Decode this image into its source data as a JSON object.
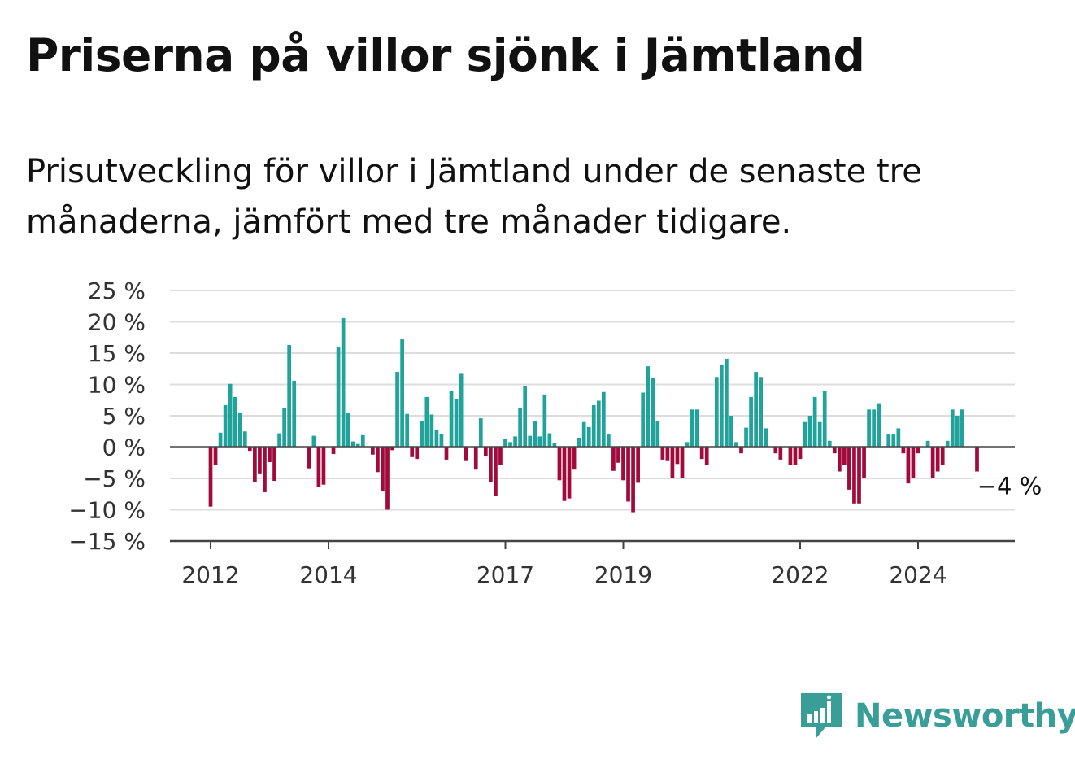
{
  "title": "Priserna på villor sjönk i Jämtland",
  "subtitle": "Prisutveckling för villor i Jämtland under de senaste tre månaderna, jämfört med tre månader tidigare.",
  "brand": {
    "name": "Newsworthy",
    "color": "#3a9e98"
  },
  "colors": {
    "positive": "#1fa39b",
    "negative": "#a10a3a",
    "grid": "#dddddd",
    "axis": "#444444"
  },
  "chart_data": {
    "type": "bar",
    "ylim": [
      -15,
      25
    ],
    "yticks": [
      25,
      20,
      15,
      10,
      5,
      0,
      -5,
      -10,
      -15
    ],
    "ytick_labels": [
      "25 %",
      "20 %",
      "15 %",
      "10 %",
      "5 %",
      "0 %",
      "−5 %",
      "−10 %",
      "−15 %"
    ],
    "x_start": "2012-01",
    "x_end": "2025-09",
    "x_tick_labels": [
      {
        "label": "2012",
        "x": "2012-01"
      },
      {
        "label": "2014",
        "x": "2014-01"
      },
      {
        "label": "2017",
        "x": "2017-01"
      },
      {
        "label": "2019",
        "x": "2019-01"
      },
      {
        "label": "2022",
        "x": "2022-01"
      },
      {
        "label": "2024",
        "x": "2024-01"
      }
    ],
    "grid": true,
    "last_value_label": "−4 %",
    "series": [
      {
        "values": [
          {
            "x": "2012-01",
            "y": -9.5
          },
          {
            "x": "2012-02",
            "y": -2.8
          },
          {
            "x": "2012-03",
            "y": 2.3
          },
          {
            "x": "2012-04",
            "y": 6.7
          },
          {
            "x": "2012-05",
            "y": 10.1
          },
          {
            "x": "2012-06",
            "y": 8.0
          },
          {
            "x": "2012-07",
            "y": 5.4
          },
          {
            "x": "2012-08",
            "y": 2.5
          },
          {
            "x": "2012-09",
            "y": -0.6
          },
          {
            "x": "2012-10",
            "y": -5.6
          },
          {
            "x": "2012-11",
            "y": -4.2
          },
          {
            "x": "2012-12",
            "y": -7.2
          },
          {
            "x": "2013-01",
            "y": -2.4
          },
          {
            "x": "2013-02",
            "y": -5.4
          },
          {
            "x": "2013-03",
            "y": 2.2
          },
          {
            "x": "2013-04",
            "y": 6.3
          },
          {
            "x": "2013-05",
            "y": 16.3
          },
          {
            "x": "2013-06",
            "y": 10.6
          },
          {
            "x": "2013-07",
            "y": 0.0
          },
          {
            "x": "2013-08",
            "y": 0.0
          },
          {
            "x": "2013-09",
            "y": -3.4
          },
          {
            "x": "2013-10",
            "y": 1.8
          },
          {
            "x": "2013-11",
            "y": -6.3
          },
          {
            "x": "2013-12",
            "y": -6.0
          },
          {
            "x": "2014-01",
            "y": 0.0
          },
          {
            "x": "2014-02",
            "y": -1.1
          },
          {
            "x": "2014-03",
            "y": 15.9
          },
          {
            "x": "2014-04",
            "y": 20.6
          },
          {
            "x": "2014-05",
            "y": 5.4
          },
          {
            "x": "2014-06",
            "y": 0.9
          },
          {
            "x": "2014-07",
            "y": 0.5
          },
          {
            "x": "2014-08",
            "y": 1.9
          },
          {
            "x": "2014-09",
            "y": 0.0
          },
          {
            "x": "2014-10",
            "y": -1.2
          },
          {
            "x": "2014-11",
            "y": -4.0
          },
          {
            "x": "2014-12",
            "y": -7.0
          },
          {
            "x": "2015-01",
            "y": -10.0
          },
          {
            "x": "2015-02",
            "y": -0.5
          },
          {
            "x": "2015-03",
            "y": 12.0
          },
          {
            "x": "2015-04",
            "y": 17.2
          },
          {
            "x": "2015-05",
            "y": 5.3
          },
          {
            "x": "2015-06",
            "y": -1.6
          },
          {
            "x": "2015-07",
            "y": -1.9
          },
          {
            "x": "2015-08",
            "y": 4.1
          },
          {
            "x": "2015-09",
            "y": 8.0
          },
          {
            "x": "2015-10",
            "y": 5.2
          },
          {
            "x": "2015-11",
            "y": 2.8
          },
          {
            "x": "2015-12",
            "y": 2.1
          },
          {
            "x": "2016-01",
            "y": -2.0
          },
          {
            "x": "2016-02",
            "y": 8.9
          },
          {
            "x": "2016-03",
            "y": 7.7
          },
          {
            "x": "2016-04",
            "y": 11.7
          },
          {
            "x": "2016-05",
            "y": -2.1
          },
          {
            "x": "2016-06",
            "y": 0.0
          },
          {
            "x": "2016-07",
            "y": -3.6
          },
          {
            "x": "2016-08",
            "y": 4.6
          },
          {
            "x": "2016-09",
            "y": -1.5
          },
          {
            "x": "2016-10",
            "y": -5.6
          },
          {
            "x": "2016-11",
            "y": -7.8
          },
          {
            "x": "2016-12",
            "y": -2.9
          },
          {
            "x": "2017-01",
            "y": 1.3
          },
          {
            "x": "2017-02",
            "y": 0.8
          },
          {
            "x": "2017-03",
            "y": 1.7
          },
          {
            "x": "2017-04",
            "y": 6.3
          },
          {
            "x": "2017-05",
            "y": 9.8
          },
          {
            "x": "2017-06",
            "y": 1.8
          },
          {
            "x": "2017-07",
            "y": 4.1
          },
          {
            "x": "2017-08",
            "y": 1.7
          },
          {
            "x": "2017-09",
            "y": 8.4
          },
          {
            "x": "2017-10",
            "y": 2.2
          },
          {
            "x": "2017-11",
            "y": 0.6
          },
          {
            "x": "2017-12",
            "y": -5.3
          },
          {
            "x": "2018-01",
            "y": -8.6
          },
          {
            "x": "2018-02",
            "y": -8.2
          },
          {
            "x": "2018-03",
            "y": -3.6
          },
          {
            "x": "2018-04",
            "y": 1.5
          },
          {
            "x": "2018-05",
            "y": 4.0
          },
          {
            "x": "2018-06",
            "y": 3.2
          },
          {
            "x": "2018-07",
            "y": 6.7
          },
          {
            "x": "2018-08",
            "y": 7.4
          },
          {
            "x": "2018-09",
            "y": 8.8
          },
          {
            "x": "2018-10",
            "y": 2.0
          },
          {
            "x": "2018-11",
            "y": -3.8
          },
          {
            "x": "2018-12",
            "y": -2.5
          },
          {
            "x": "2019-01",
            "y": -5.3
          },
          {
            "x": "2019-02",
            "y": -8.7
          },
          {
            "x": "2019-03",
            "y": -10.4
          },
          {
            "x": "2019-04",
            "y": -5.7
          },
          {
            "x": "2019-05",
            "y": 8.7
          },
          {
            "x": "2019-06",
            "y": 12.9
          },
          {
            "x": "2019-07",
            "y": 11.0
          },
          {
            "x": "2019-08",
            "y": 4.1
          },
          {
            "x": "2019-09",
            "y": -2.0
          },
          {
            "x": "2019-10",
            "y": -2.1
          },
          {
            "x": "2019-11",
            "y": -5.0
          },
          {
            "x": "2019-12",
            "y": -2.7
          },
          {
            "x": "2020-01",
            "y": -5.0
          },
          {
            "x": "2020-02",
            "y": 0.8
          },
          {
            "x": "2020-03",
            "y": 6.0
          },
          {
            "x": "2020-04",
            "y": 6.0
          },
          {
            "x": "2020-05",
            "y": -1.9
          },
          {
            "x": "2020-06",
            "y": -2.8
          },
          {
            "x": "2020-07",
            "y": 0.0
          },
          {
            "x": "2020-08",
            "y": 11.2
          },
          {
            "x": "2020-09",
            "y": 13.2
          },
          {
            "x": "2020-10",
            "y": 14.1
          },
          {
            "x": "2020-11",
            "y": 5.0
          },
          {
            "x": "2020-12",
            "y": 0.8
          },
          {
            "x": "2021-01",
            "y": -1.0
          },
          {
            "x": "2021-02",
            "y": 3.1
          },
          {
            "x": "2021-03",
            "y": 8.0
          },
          {
            "x": "2021-04",
            "y": 12.0
          },
          {
            "x": "2021-05",
            "y": 11.2
          },
          {
            "x": "2021-06",
            "y": 3.0
          },
          {
            "x": "2021-07",
            "y": 0.0
          },
          {
            "x": "2021-08",
            "y": -1.0
          },
          {
            "x": "2021-09",
            "y": -2.0
          },
          {
            "x": "2021-10",
            "y": 0.0
          },
          {
            "x": "2021-11",
            "y": -2.9
          },
          {
            "x": "2021-12",
            "y": -2.9
          },
          {
            "x": "2022-01",
            "y": -1.9
          },
          {
            "x": "2022-02",
            "y": 4.0
          },
          {
            "x": "2022-03",
            "y": 5.0
          },
          {
            "x": "2022-04",
            "y": 8.0
          },
          {
            "x": "2022-05",
            "y": 4.0
          },
          {
            "x": "2022-06",
            "y": 9.0
          },
          {
            "x": "2022-07",
            "y": 1.0
          },
          {
            "x": "2022-08",
            "y": -1.0
          },
          {
            "x": "2022-09",
            "y": -3.9
          },
          {
            "x": "2022-10",
            "y": -2.9
          },
          {
            "x": "2022-11",
            "y": -6.8
          },
          {
            "x": "2022-12",
            "y": -9.0
          },
          {
            "x": "2023-01",
            "y": -9.0
          },
          {
            "x": "2023-02",
            "y": -5.0
          },
          {
            "x": "2023-03",
            "y": 6.0
          },
          {
            "x": "2023-04",
            "y": 6.0
          },
          {
            "x": "2023-05",
            "y": 7.0
          },
          {
            "x": "2023-06",
            "y": 0.0
          },
          {
            "x": "2023-07",
            "y": 2.0
          },
          {
            "x": "2023-08",
            "y": 2.0
          },
          {
            "x": "2023-09",
            "y": 3.0
          },
          {
            "x": "2023-10",
            "y": -1.0
          },
          {
            "x": "2023-11",
            "y": -5.8
          },
          {
            "x": "2023-12",
            "y": -4.9
          },
          {
            "x": "2024-01",
            "y": -1.0
          },
          {
            "x": "2024-02",
            "y": 0.0
          },
          {
            "x": "2024-03",
            "y": 1.0
          },
          {
            "x": "2024-04",
            "y": -5.0
          },
          {
            "x": "2024-05",
            "y": -3.9
          },
          {
            "x": "2024-06",
            "y": -2.8
          },
          {
            "x": "2024-07",
            "y": 1.0
          },
          {
            "x": "2024-08",
            "y": 6.0
          },
          {
            "x": "2024-09",
            "y": 5.0
          },
          {
            "x": "2024-10",
            "y": 6.0
          },
          {
            "x": "2024-11",
            "y": 0.0
          },
          {
            "x": "2024-12",
            "y": 0.0
          },
          {
            "x": "2025-01",
            "y": -3.9
          }
        ]
      }
    ]
  }
}
